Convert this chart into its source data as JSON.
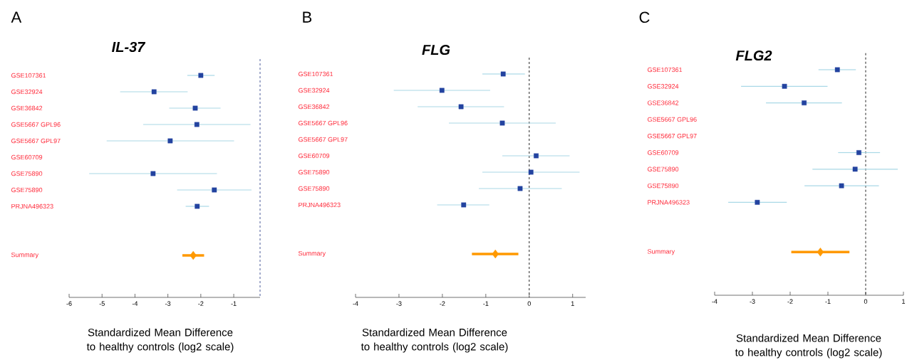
{
  "chart_data": [
    {
      "type": "scatter",
      "orientation": "horizontal",
      "title": "IL-37",
      "xlabel": "Standardized Mean Difference to healthy controls (log2 scale)",
      "annotations": [
        "A"
      ],
      "categories": [
        "GSE107361",
        "GSE32924",
        "GSE36842",
        "GSE5667 GPL96",
        "GSE5667 GPL97",
        "GSE60709",
        "GSE75890",
        "GSE75890",
        "PRJNA496323",
        null,
        null,
        "Summary"
      ],
      "series": [
        {
          "color": "#2343a0",
          "marker": "square",
          "values": [
            -2.0,
            -3.42,
            -2.17,
            -2.12,
            -2.93,
            null,
            -3.45,
            -1.59,
            -2.11,
            null,
            null,
            null
          ],
          "errors": [
            [
              -2.41,
              -1.58
            ],
            [
              -4.45,
              -2.4
            ],
            [
              -2.96,
              -1.4
            ],
            [
              -3.75,
              -0.49
            ],
            [
              -4.86,
              -0.99
            ],
            null,
            [
              -5.39,
              -1.51
            ],
            [
              -2.72,
              -0.46
            ],
            [
              -2.46,
              -1.75
            ],
            null,
            null,
            null
          ]
        },
        {
          "color": "#ff9900",
          "marker": "diamond",
          "values": [
            null,
            null,
            null,
            null,
            null,
            null,
            null,
            null,
            null,
            null,
            null,
            -2.23
          ],
          "errors": [
            null,
            null,
            null,
            null,
            null,
            null,
            null,
            null,
            null,
            null,
            null,
            [
              -2.56,
              -1.9
            ]
          ]
        }
      ],
      "xlim": [
        -6,
        -0.2
      ],
      "xticks": [
        -6,
        -5,
        -4,
        -3,
        -2,
        -1
      ],
      "ref_lines": [
        {
          "axis": "x",
          "value": -0.2,
          "color": "#4a5a9a",
          "line_style": "dashed"
        }
      ]
    },
    {
      "type": "scatter",
      "orientation": "horizontal",
      "title": "FLG",
      "xlabel": "Standardized Mean Difference to healthy controls (log2 scale)",
      "annotations": [
        "B"
      ],
      "categories": [
        "GSE107361",
        "GSE32924",
        "GSE36842",
        "GSE5667 GPL96",
        "GSE5667 GPL97",
        "GSE60709",
        "GSE75890",
        "GSE75890",
        "PRJNA496323",
        null,
        null,
        "Summary"
      ],
      "series": [
        {
          "color": "#2343a0",
          "marker": "square",
          "values": [
            -0.6,
            -2.01,
            -1.57,
            -0.62,
            null,
            0.16,
            0.04,
            -0.21,
            -1.51,
            null,
            null,
            null
          ],
          "errors": [
            [
              -1.08,
              -0.1
            ],
            [
              -3.12,
              -0.9
            ],
            [
              -2.57,
              -0.58
            ],
            [
              -1.85,
              0.61
            ],
            null,
            [
              -0.62,
              0.93
            ],
            [
              -1.08,
              1.16
            ],
            [
              -1.16,
              0.75
            ],
            [
              -2.12,
              -0.92
            ],
            null,
            null,
            null
          ]
        },
        {
          "color": "#ff9900",
          "marker": "diamond",
          "values": [
            null,
            null,
            null,
            null,
            null,
            null,
            null,
            null,
            null,
            null,
            null,
            -0.78
          ],
          "errors": [
            null,
            null,
            null,
            null,
            null,
            null,
            null,
            null,
            null,
            null,
            null,
            [
              -1.32,
              -0.25
            ]
          ]
        }
      ],
      "xlim": [
        -4,
        1.3
      ],
      "xticks": [
        -4,
        -3,
        -2,
        -1,
        0,
        1
      ],
      "ref_lines": [
        {
          "axis": "x",
          "value": 0,
          "color": "#222222",
          "line_style": "dashed"
        }
      ]
    },
    {
      "type": "scatter",
      "orientation": "horizontal",
      "title": "FLG2",
      "xlabel": "Standardized Mean Difference to healthy controls (log2 scale)",
      "annotations": [
        "C"
      ],
      "categories": [
        "GSE107361",
        "GSE32924",
        "GSE36842",
        "GSE5667 GPL96",
        "GSE5667 GPL97",
        "GSE60709",
        "GSE75890",
        "GSE75890",
        "PRJNA496323",
        null,
        null,
        "Summary"
      ],
      "series": [
        {
          "color": "#2343a0",
          "marker": "square",
          "values": [
            -0.75,
            -2.15,
            -1.63,
            null,
            null,
            -0.18,
            -0.28,
            -0.64,
            -2.87,
            null,
            null,
            null
          ],
          "errors": [
            [
              -1.25,
              -0.26
            ],
            [
              -3.3,
              -1.01
            ],
            [
              -2.64,
              -0.63
            ],
            null,
            null,
            [
              -0.73,
              0.38
            ],
            [
              -1.41,
              0.85
            ],
            [
              -1.62,
              0.35
            ],
            [
              -3.64,
              -2.09
            ],
            null,
            null,
            null
          ]
        },
        {
          "color": "#ff9900",
          "marker": "diamond",
          "values": [
            null,
            null,
            null,
            null,
            null,
            null,
            null,
            null,
            null,
            null,
            null,
            -1.2
          ],
          "errors": [
            null,
            null,
            null,
            null,
            null,
            null,
            null,
            null,
            null,
            null,
            null,
            [
              -1.97,
              -0.43
            ]
          ]
        }
      ],
      "xlim": [
        -4,
        1
      ],
      "xticks": [
        -4,
        -3,
        -2,
        -1,
        0,
        1
      ],
      "ref_lines": [
        {
          "axis": "x",
          "value": 0,
          "color": "#222222",
          "line_style": "dashed"
        }
      ]
    }
  ]
}
